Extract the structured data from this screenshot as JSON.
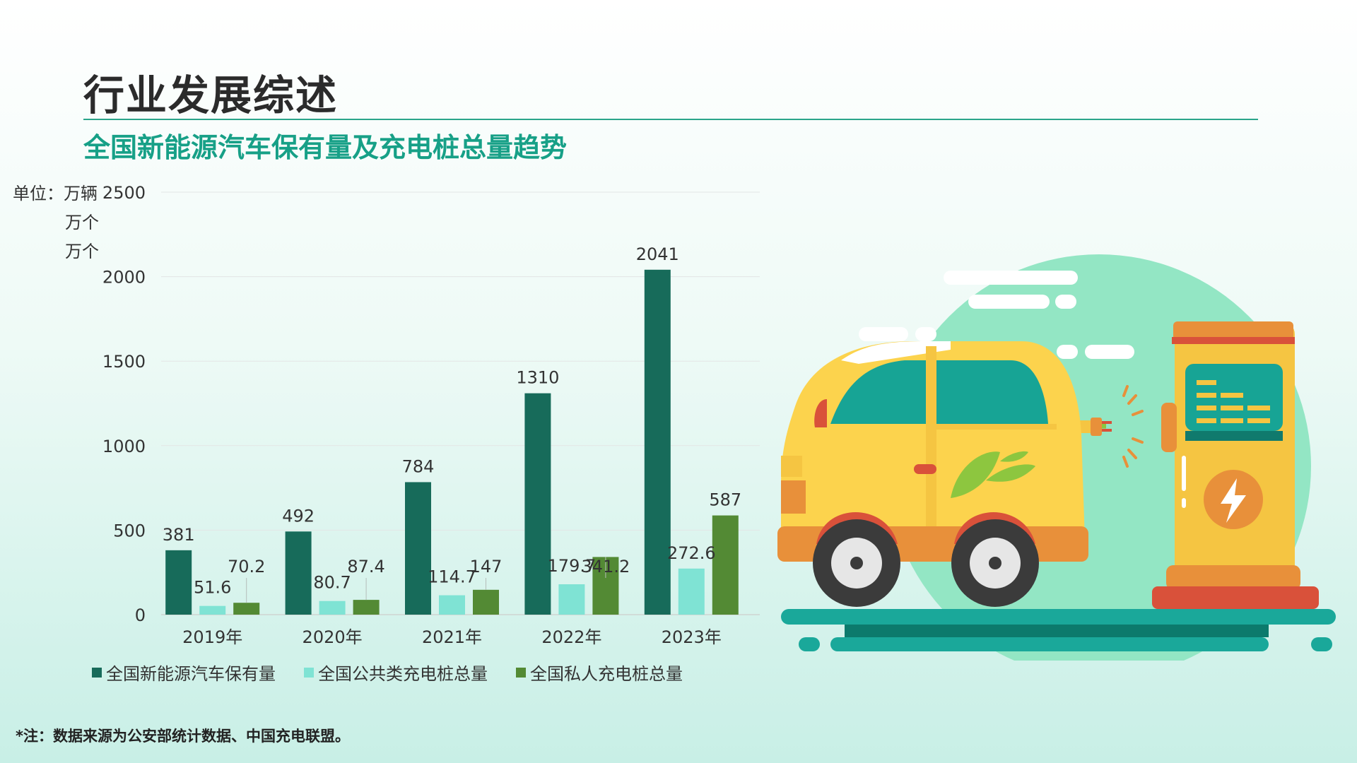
{
  "page": {
    "title": "行业发展综述",
    "subtitle": "全国新能源汽车保有量及充电桩总量趋势",
    "unit_label": "单位：",
    "units": [
      "万辆",
      "万个",
      "万个"
    ],
    "footnote": "*注：数据来源为公安部统计数据、中国充电联盟。"
  },
  "colors": {
    "title": "#2b2b2b",
    "accent": "#17a087",
    "series_1": "#176b5a",
    "series_2": "#7fe3d4",
    "series_3": "#538a34"
  },
  "chart_data": {
    "type": "bar",
    "categories": [
      "2019年",
      "2020年",
      "2021年",
      "2022年",
      "2023年"
    ],
    "series": [
      {
        "name": "全国新能源汽车保有量",
        "values": [
          381,
          492,
          784,
          1310,
          2041
        ],
        "labels": [
          "381",
          "492",
          "784",
          "1310",
          "2041"
        ]
      },
      {
        "name": "全国公共类充电桩总量",
        "values": [
          51.6,
          80.7,
          114.7,
          179.7,
          272.6
        ],
        "labels": [
          "51.6",
          "80.7",
          "114.7",
          "179.7",
          "272.6"
        ]
      },
      {
        "name": "全国私人充电桩总量",
        "values": [
          70.2,
          87.4,
          147,
          341.2,
          587
        ],
        "labels": [
          "70.2",
          "87.4",
          "147",
          "341.2",
          "587"
        ]
      }
    ],
    "yticks": [
      0,
      500,
      1000,
      1500,
      2000,
      2500
    ],
    "ylim": [
      0,
      2500
    ],
    "grid": true,
    "legend": "bottom"
  },
  "illustration": {
    "icon": "electric-car-charging-icon"
  }
}
